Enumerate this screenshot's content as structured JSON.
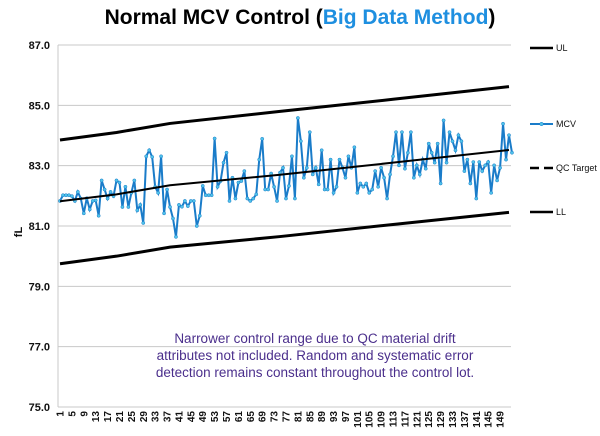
{
  "chart_data": {
    "type": "line",
    "title_parts": [
      "Normal MCV Control (",
      "Big Data Method",
      ")"
    ],
    "title_highlight_color": "#1e8fe0",
    "ylabel": "fL",
    "xlabel": "",
    "ylim": [
      75,
      87
    ],
    "yticks": [
      "75.0",
      "77.0",
      "79.0",
      "81.0",
      "83.0",
      "85.0",
      "87.0"
    ],
    "ytick_values": [
      75,
      77,
      79,
      81,
      83,
      85,
      87
    ],
    "xlim": [
      1,
      152
    ],
    "xticks": [
      1,
      5,
      9,
      13,
      17,
      21,
      25,
      29,
      33,
      37,
      41,
      45,
      49,
      53,
      57,
      61,
      65,
      69,
      73,
      77,
      81,
      85,
      89,
      93,
      97,
      101,
      105,
      109,
      113,
      117,
      121,
      125,
      129,
      133,
      137,
      141,
      145,
      149
    ],
    "grid": true,
    "legend_position": "right",
    "series": [
      {
        "name": "UL",
        "style": "solid",
        "color": "#000000",
        "x": [
          1,
          20,
          38,
          75,
          113,
          152
        ],
        "values": [
          83.85,
          84.1,
          84.4,
          84.8,
          85.2,
          85.62
        ]
      },
      {
        "name": "MCV",
        "style": "marker-line",
        "color": "#1a7cc9",
        "marker_color": "#4fc3ea",
        "values": [
          81.83,
          82.02,
          82.02,
          82.02,
          81.99,
          81.83,
          82.13,
          81.91,
          81.42,
          81.92,
          81.55,
          81.83,
          81.85,
          81.34,
          82.51,
          82.21,
          81.91,
          82.13,
          81.99,
          82.51,
          82.44,
          81.63,
          82.3,
          81.63,
          82.1,
          82.51,
          81.52,
          81.7,
          81.1,
          83.31,
          83.51,
          83.29,
          82.3,
          82.1,
          83.31,
          81.42,
          82.21,
          81.63,
          81.25,
          80.64,
          81.7,
          81.64,
          81.83,
          81.66,
          81.83,
          81.83,
          81.0,
          81.34,
          82.33,
          82.02,
          82.02,
          82.02,
          83.9,
          82.3,
          82.49,
          83.1,
          83.43,
          81.83,
          82.6,
          81.91,
          82.44,
          82.49,
          82.82,
          81.91,
          81.83,
          81.91,
          82.05,
          83.2,
          83.89,
          82.21,
          82.21,
          82.74,
          82.3,
          81.83,
          82.77,
          82.93,
          81.91,
          82.33,
          83.31,
          81.91,
          84.58,
          83.81,
          82.6,
          82.93,
          84.11,
          82.71,
          82.93,
          82.38,
          83.51,
          82.21,
          82.21,
          83.2,
          82.1,
          82.3,
          83.2,
          82.93,
          82.6,
          83.31,
          82.93,
          83.61,
          82.1,
          82.41,
          82.3,
          82.41,
          82.1,
          82.21,
          82.82,
          82.3,
          82.93,
          82.6,
          81.91,
          82.71,
          83.31,
          84.11,
          83.01,
          84.11,
          82.9,
          83.43,
          84.11,
          82.6,
          83.01,
          82.71,
          83.2,
          82.9,
          83.73,
          83.43,
          83.1,
          83.73,
          82.41,
          84.5,
          83.1,
          84.11,
          83.81,
          83.51,
          84.01,
          83.81,
          82.82,
          83.2,
          82.41,
          83.12,
          81.91,
          83.12,
          82.82,
          83.01,
          83.12,
          82.1,
          83.01,
          82.51,
          82.93,
          84.39,
          83.2,
          84.01,
          83.43
        ]
      },
      {
        "name": "QC Target",
        "style": "dashed",
        "color": "#000000",
        "x": [
          1,
          20,
          38,
          75,
          113,
          152
        ],
        "values": [
          81.82,
          82.05,
          82.35,
          82.7,
          83.1,
          83.52
        ]
      },
      {
        "name": "LL",
        "style": "solid",
        "color": "#000000",
        "x": [
          1,
          20,
          38,
          75,
          113,
          152
        ],
        "values": [
          79.75,
          80.0,
          80.3,
          80.65,
          81.05,
          81.45
        ]
      }
    ],
    "annotation": "Narrower control range due to QC material drift attributes not included. Random and systematic error detection remains constant throughout the control lot."
  }
}
